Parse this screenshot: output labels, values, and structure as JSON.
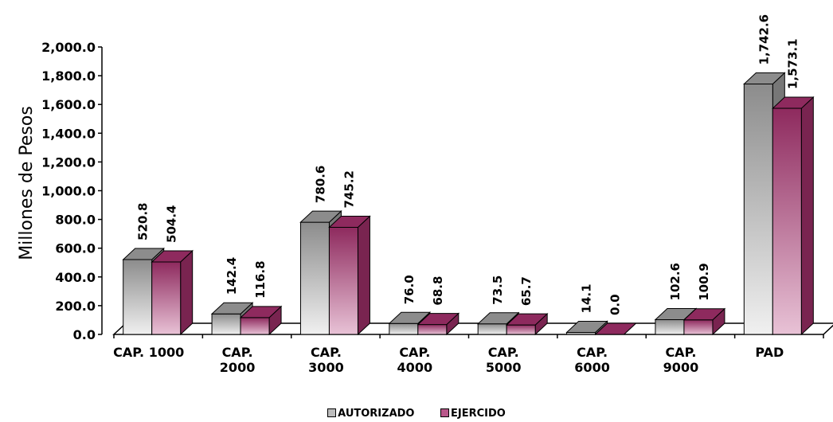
{
  "chart_data": {
    "type": "bar",
    "ylabel": "Millones de Pesos",
    "ylim": [
      0,
      2000
    ],
    "yticks": [
      "0.0",
      "200.0",
      "400.0",
      "600.0",
      "800.0",
      "1,000.0",
      "1,200.0",
      "1,400.0",
      "1,600.0",
      "1,800.0",
      "2,000.0"
    ],
    "categories": [
      [
        "CAP. 1000"
      ],
      [
        "CAP.",
        "2000"
      ],
      [
        "CAP.",
        "3000"
      ],
      [
        "CAP.",
        "4000"
      ],
      [
        "CAP.",
        "5000"
      ],
      [
        "CAP.",
        "6000"
      ],
      [
        "CAP.",
        "9000"
      ],
      [
        "PAD"
      ]
    ],
    "series": [
      {
        "name": "AUTORIZADO",
        "values": [
          520.8,
          142.4,
          780.6,
          76.0,
          73.5,
          14.1,
          102.6,
          1742.6
        ],
        "labels": [
          "520.8",
          "142.4",
          "780.6",
          "76.0",
          "73.5",
          "14.1",
          "102.6",
          "1,742.6"
        ],
        "color_light": "#f0f0f0",
        "color_dark": "#8c8c8c"
      },
      {
        "name": "EJERCIDO",
        "values": [
          504.4,
          116.8,
          745.2,
          68.8,
          65.7,
          0.0,
          100.9,
          1573.1
        ],
        "labels": [
          "504.4",
          "116.8",
          "745.2",
          "68.8",
          "65.7",
          "0.0",
          "100.9",
          "1,573.1"
        ],
        "color_light": "#e8c2d6",
        "color_dark": "#8e2a5e"
      }
    ],
    "legend_position": "bottom",
    "grid": false
  }
}
